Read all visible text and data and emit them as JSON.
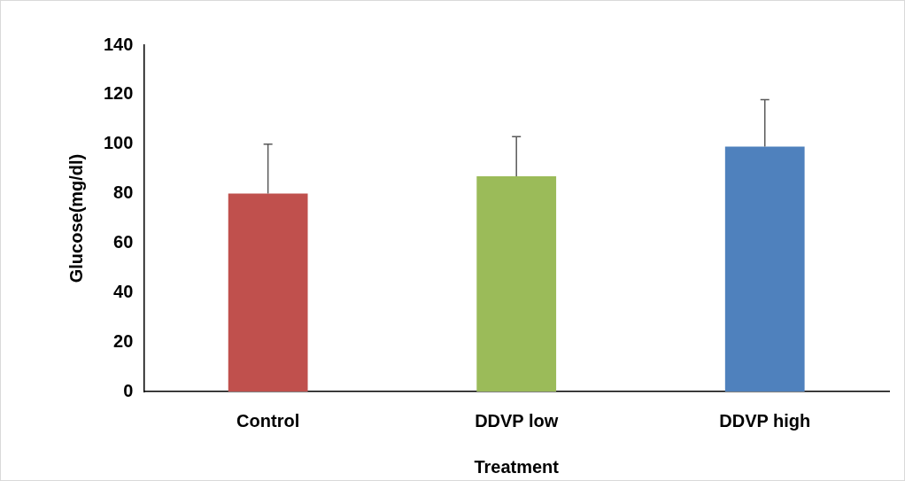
{
  "chart_data": {
    "type": "bar",
    "xlabel": "Treatment",
    "ylabel": "Glucose(mg/dl)",
    "categories": [
      "Control",
      "DDVP low",
      "DDVP high"
    ],
    "values": [
      80,
      87,
      99
    ],
    "colors": [
      "#c0504d",
      "#9bbb59",
      "#4f81bd"
    ],
    "errors": [
      [
        80,
        100
      ],
      [
        87,
        103
      ],
      [
        99,
        118
      ]
    ],
    "ylim": [
      0,
      140
    ],
    "yticks": [
      0,
      20,
      40,
      60,
      80,
      100,
      120,
      140
    ],
    "grid": false,
    "legend": false
  }
}
